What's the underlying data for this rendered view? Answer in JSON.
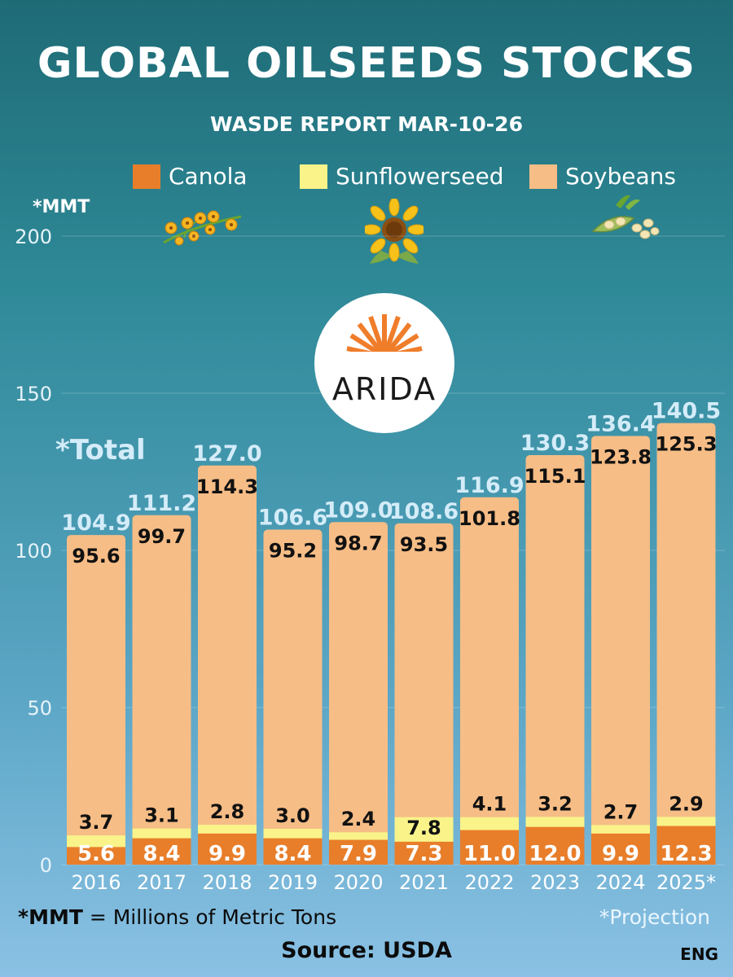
{
  "header": {
    "title": "GLOBAL OILSEEDS STOCKS",
    "subtitle": "WASDE REPORT MAR-10-26"
  },
  "legend": {
    "canola": "Canola",
    "sunflowerseed": "Sunflowerseed",
    "soybeans": "Soybeans"
  },
  "unit_label": "*MMT",
  "total_label": "*Total",
  "logo": {
    "text": "ARIDA"
  },
  "footer": {
    "mmt_abbr": "*MMT",
    "mmt_def": " = Millions of Metric Tons",
    "projection": "*Projection",
    "source": "Source: USDA",
    "lang": "ENG"
  },
  "colors": {
    "canola": "#e87e2a",
    "sunflowerseed": "#f9f38a",
    "soybeans": "#f6bd86",
    "total_text": "#d4ecf9",
    "tick_text": "#e6f3fa"
  },
  "icons": [
    "canola-flower-icon",
    "sunflower-icon",
    "soybean-pod-icon"
  ],
  "chart_data": {
    "type": "bar",
    "stacked": true,
    "categories": [
      "2016",
      "2017",
      "2018",
      "2019",
      "2020",
      "2021",
      "2022",
      "2023",
      "2024",
      "2025*"
    ],
    "series": [
      {
        "name": "Canola",
        "values": [
          5.6,
          8.4,
          9.9,
          8.4,
          7.9,
          7.3,
          11.0,
          12.0,
          9.9,
          12.3
        ]
      },
      {
        "name": "Sunflowerseed",
        "values": [
          3.7,
          3.1,
          2.8,
          3.0,
          2.4,
          7.8,
          4.1,
          3.2,
          2.7,
          2.9
        ]
      },
      {
        "name": "Soybeans",
        "values": [
          95.6,
          99.7,
          114.3,
          95.2,
          98.7,
          93.5,
          101.8,
          115.1,
          123.8,
          125.3
        ]
      }
    ],
    "totals": [
      104.9,
      111.2,
      127.0,
      106.6,
      109.0,
      108.6,
      116.9,
      130.3,
      136.4,
      140.5
    ],
    "yticks": [
      0,
      50,
      100,
      150,
      200
    ],
    "ylim": [
      0,
      200
    ],
    "grid": true,
    "legend_position": "top"
  }
}
